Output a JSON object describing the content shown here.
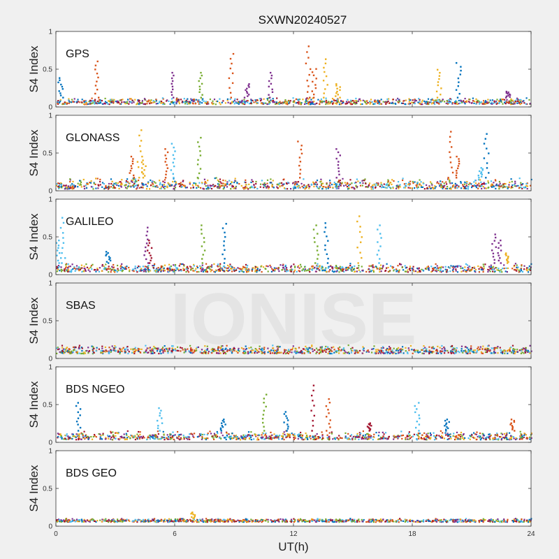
{
  "title": "SXWN20240527",
  "xlabel": "UT(h)",
  "ylabel": "S4 Index",
  "watermark": "IONISE",
  "xticks": [
    "0",
    "6",
    "12",
    "18",
    "24"
  ],
  "yticks": [
    "0",
    "0.5",
    "1"
  ],
  "series_colors": [
    "#0072bd",
    "#d95319",
    "#edb120",
    "#7e2f8e",
    "#77ac30",
    "#4dbeee",
    "#a2142f"
  ],
  "chart_data": [
    {
      "type": "scatter",
      "panel_label": "GPS",
      "xlim": [
        0,
        24
      ],
      "ylim": [
        0,
        1
      ],
      "xlabel": "",
      "ylabel": "S4 Index",
      "baseline": [
        0.03,
        0.12
      ],
      "spikes": [
        {
          "x": 0.2,
          "y": 0.38,
          "color": 0
        },
        {
          "x": 2.0,
          "y": 0.6,
          "color": 1
        },
        {
          "x": 5.8,
          "y": 0.45,
          "color": 3
        },
        {
          "x": 7.3,
          "y": 0.45,
          "color": 4
        },
        {
          "x": 8.8,
          "y": 0.7,
          "color": 1
        },
        {
          "x": 9.6,
          "y": 0.3,
          "color": 3
        },
        {
          "x": 10.8,
          "y": 0.45,
          "color": 3
        },
        {
          "x": 12.7,
          "y": 0.8,
          "color": 1
        },
        {
          "x": 13.0,
          "y": 0.5,
          "color": 1
        },
        {
          "x": 13.6,
          "y": 0.63,
          "color": 2
        },
        {
          "x": 14.2,
          "y": 0.3,
          "color": 2
        },
        {
          "x": 19.3,
          "y": 0.49,
          "color": 2
        },
        {
          "x": 20.3,
          "y": 0.58,
          "color": 0
        },
        {
          "x": 22.8,
          "y": 0.2,
          "color": 3
        }
      ]
    },
    {
      "type": "scatter",
      "panel_label": "GLONASS",
      "xlim": [
        0,
        24
      ],
      "ylim": [
        0,
        1
      ],
      "xlabel": "",
      "ylabel": "S4 Index",
      "baseline": [
        0.02,
        0.17
      ],
      "spikes": [
        {
          "x": 3.8,
          "y": 0.45,
          "color": 1
        },
        {
          "x": 4.2,
          "y": 0.8,
          "color": 2
        },
        {
          "x": 4.4,
          "y": 0.4,
          "color": 2
        },
        {
          "x": 5.5,
          "y": 0.55,
          "color": 1
        },
        {
          "x": 5.9,
          "y": 0.62,
          "color": 5
        },
        {
          "x": 7.2,
          "y": 0.7,
          "color": 4
        },
        {
          "x": 12.3,
          "y": 0.65,
          "color": 1
        },
        {
          "x": 14.2,
          "y": 0.55,
          "color": 3
        },
        {
          "x": 19.9,
          "y": 0.78,
          "color": 1
        },
        {
          "x": 20.2,
          "y": 0.45,
          "color": 1
        },
        {
          "x": 21.7,
          "y": 0.75,
          "color": 0
        },
        {
          "x": 21.4,
          "y": 0.3,
          "color": 5
        }
      ]
    },
    {
      "type": "scatter",
      "panel_label": "GALILEO",
      "xlim": [
        0,
        24
      ],
      "ylim": [
        0,
        1
      ],
      "xlabel": "",
      "ylabel": "S4 Index",
      "baseline": [
        0.03,
        0.15
      ],
      "spikes": [
        {
          "x": 0.3,
          "y": 0.75,
          "color": 5
        },
        {
          "x": 0.1,
          "y": 0.45,
          "color": 5
        },
        {
          "x": 2.6,
          "y": 0.3,
          "color": 0
        },
        {
          "x": 4.5,
          "y": 0.62,
          "color": 3
        },
        {
          "x": 4.7,
          "y": 0.45,
          "color": 6
        },
        {
          "x": 7.4,
          "y": 0.65,
          "color": 4
        },
        {
          "x": 8.5,
          "y": 0.67,
          "color": 0
        },
        {
          "x": 13.1,
          "y": 0.65,
          "color": 4
        },
        {
          "x": 13.6,
          "y": 0.68,
          "color": 0
        },
        {
          "x": 15.3,
          "y": 0.77,
          "color": 2
        },
        {
          "x": 16.3,
          "y": 0.65,
          "color": 5
        },
        {
          "x": 22.1,
          "y": 0.53,
          "color": 3
        },
        {
          "x": 22.4,
          "y": 0.45,
          "color": 3
        },
        {
          "x": 22.8,
          "y": 0.28,
          "color": 2
        }
      ]
    },
    {
      "type": "scatter",
      "panel_label": "SBAS",
      "xlim": [
        0,
        24
      ],
      "ylim": [
        0,
        1
      ],
      "xlabel": "",
      "ylabel": "S4 Index",
      "baseline": [
        0.06,
        0.18
      ],
      "spikes": []
    },
    {
      "type": "scatter",
      "panel_label": "BDS NGEO",
      "xlim": [
        0,
        24
      ],
      "ylim": [
        0,
        1
      ],
      "xlabel": "",
      "ylabel": "S4 Index",
      "baseline": [
        0.03,
        0.15
      ],
      "spikes": [
        {
          "x": 1.1,
          "y": 0.52,
          "color": 0
        },
        {
          "x": 5.2,
          "y": 0.45,
          "color": 5
        },
        {
          "x": 8.4,
          "y": 0.3,
          "color": 0
        },
        {
          "x": 10.5,
          "y": 0.63,
          "color": 4
        },
        {
          "x": 11.6,
          "y": 0.4,
          "color": 0
        },
        {
          "x": 12.9,
          "y": 0.75,
          "color": 6
        },
        {
          "x": 13.7,
          "y": 0.57,
          "color": 1
        },
        {
          "x": 15.8,
          "y": 0.25,
          "color": 6
        },
        {
          "x": 18.2,
          "y": 0.52,
          "color": 5
        },
        {
          "x": 19.7,
          "y": 0.3,
          "color": 0
        },
        {
          "x": 23.0,
          "y": 0.3,
          "color": 1
        }
      ]
    },
    {
      "type": "scatter",
      "panel_label": "BDS GEO",
      "xlim": [
        0,
        24
      ],
      "ylim": [
        0,
        1
      ],
      "xlabel": "UT(h)",
      "ylabel": "S4 Index",
      "baseline": [
        0.05,
        0.1
      ],
      "spikes": [
        {
          "x": 6.9,
          "y": 0.18,
          "color": 2
        }
      ]
    }
  ]
}
